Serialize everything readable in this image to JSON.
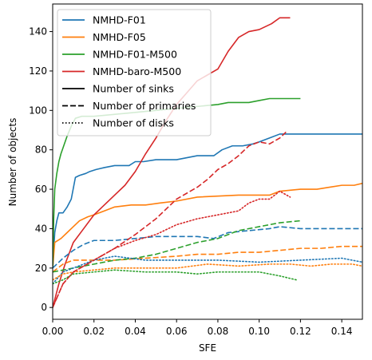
{
  "chart_data": {
    "type": "line",
    "xlabel": "SFE",
    "ylabel": "Number of objects",
    "xlim": [
      0,
      0.15
    ],
    "ylim": [
      -6,
      154
    ],
    "xticks": [
      0.0,
      0.02,
      0.04,
      0.06,
      0.08,
      0.1,
      0.12,
      0.14
    ],
    "xtick_labels": [
      "0.00",
      "0.02",
      "0.04",
      "0.06",
      "0.08",
      "0.10",
      "0.12",
      "0.14"
    ],
    "yticks": [
      0,
      20,
      40,
      60,
      80,
      100,
      120,
      140
    ],
    "ytick_labels": [
      "0",
      "20",
      "40",
      "60",
      "80",
      "100",
      "120",
      "140"
    ],
    "grid": false,
    "legend_position": "top-left",
    "legend_entries": [
      {
        "label": "NMHD-F01",
        "color": "#1f77b4",
        "style": "solid"
      },
      {
        "label": "NMHD-F05",
        "color": "#ff7f0e",
        "style": "solid"
      },
      {
        "label": "NMHD-F01-M500",
        "color": "#2ca02c",
        "style": "solid"
      },
      {
        "label": "NMHD-baro-M500",
        "color": "#d62728",
        "style": "solid"
      },
      {
        "label": "Number of sinks",
        "color": "#000000",
        "style": "solid"
      },
      {
        "label": "Number of primaries",
        "color": "#000000",
        "style": "dashed"
      },
      {
        "label": "Number of disks",
        "color": "#000000",
        "style": "dotted"
      }
    ],
    "series": [
      {
        "model": "NMHD-F01",
        "quantity": "sinks",
        "color": "#1f77b4",
        "style": "solid",
        "x": [
          0,
          0.001,
          0.002,
          0.003,
          0.005,
          0.007,
          0.009,
          0.011,
          0.013,
          0.016,
          0.018,
          0.021,
          0.025,
          0.03,
          0.037,
          0.04,
          0.044,
          0.05,
          0.06,
          0.065,
          0.07,
          0.078,
          0.082,
          0.087,
          0.092,
          0.097,
          0.1,
          0.105,
          0.11,
          0.15
        ],
        "y": [
          20,
          38,
          44,
          48,
          48,
          51,
          55,
          66,
          67,
          68,
          69,
          70,
          71,
          72,
          72,
          74,
          74,
          75,
          75,
          76,
          77,
          77,
          80,
          82,
          82,
          83,
          84,
          86,
          88,
          88
        ]
      },
      {
        "model": "NMHD-F05",
        "quantity": "sinks",
        "color": "#ff7f0e",
        "style": "solid",
        "x": [
          0,
          0.001,
          0.004,
          0.007,
          0.01,
          0.013,
          0.017,
          0.02,
          0.025,
          0.03,
          0.038,
          0.045,
          0.052,
          0.06,
          0.07,
          0.09,
          0.105,
          0.11,
          0.12,
          0.128,
          0.134,
          0.14,
          0.146,
          0.15
        ],
        "y": [
          20,
          33,
          35,
          38,
          41,
          44,
          46,
          47,
          49,
          51,
          52,
          52,
          53,
          54,
          56,
          57,
          57,
          59,
          60,
          60,
          61,
          62,
          62,
          63
        ]
      },
      {
        "model": "NMHD-F01-M500",
        "quantity": "sinks",
        "color": "#2ca02c",
        "style": "solid",
        "x": [
          0,
          0.0005,
          0.001,
          0.002,
          0.003,
          0.004,
          0.005,
          0.007,
          0.009,
          0.011,
          0.014,
          0.017,
          0.02,
          0.04,
          0.06,
          0.07,
          0.08,
          0.085,
          0.095,
          0.1,
          0.105,
          0.115,
          0.12
        ],
        "y": [
          20,
          45,
          60,
          68,
          74,
          78,
          81,
          87,
          92,
          96,
          97,
          97,
          97,
          99,
          101,
          102,
          103,
          104,
          104,
          105,
          106,
          106,
          106
        ]
      },
      {
        "model": "NMHD-baro-M500",
        "quantity": "sinks",
        "color": "#d62728",
        "style": "solid",
        "x": [
          0,
          0.003,
          0.006,
          0.01,
          0.015,
          0.02,
          0.025,
          0.03,
          0.035,
          0.04,
          0.045,
          0.05,
          0.055,
          0.06,
          0.065,
          0.07,
          0.075,
          0.08,
          0.085,
          0.09,
          0.095,
          0.1,
          0.106,
          0.11,
          0.115
        ],
        "y": [
          0,
          12,
          22,
          33,
          40,
          47,
          52,
          57,
          62,
          69,
          78,
          86,
          95,
          103,
          109,
          115,
          118,
          121,
          130,
          137,
          140,
          141,
          144,
          147,
          147
        ]
      },
      {
        "model": "NMHD-F01",
        "quantity": "primaries",
        "color": "#1f77b4",
        "style": "dashed",
        "x": [
          0,
          0.002,
          0.005,
          0.01,
          0.015,
          0.02,
          0.03,
          0.04,
          0.05,
          0.06,
          0.07,
          0.078,
          0.085,
          0.095,
          0.105,
          0.11,
          0.12,
          0.15
        ],
        "y": [
          20,
          22,
          25,
          29,
          32,
          34,
          34,
          35,
          36,
          36,
          36,
          35,
          38,
          39,
          40,
          41,
          40,
          40
        ]
      },
      {
        "model": "NMHD-F05",
        "quantity": "primaries",
        "color": "#ff7f0e",
        "style": "dashed",
        "x": [
          0,
          0.005,
          0.01,
          0.02,
          0.03,
          0.045,
          0.06,
          0.07,
          0.08,
          0.09,
          0.1,
          0.11,
          0.12,
          0.13,
          0.14,
          0.15
        ],
        "y": [
          18,
          22,
          24,
          24,
          24,
          25,
          26,
          27,
          27,
          28,
          28,
          29,
          30,
          30,
          31,
          31
        ]
      },
      {
        "model": "NMHD-F01-M500",
        "quantity": "primaries",
        "color": "#2ca02c",
        "style": "dashed",
        "x": [
          0,
          0.005,
          0.01,
          0.02,
          0.03,
          0.04,
          0.05,
          0.06,
          0.07,
          0.08,
          0.09,
          0.1,
          0.11,
          0.12
        ],
        "y": [
          18,
          19,
          20,
          22,
          24,
          25,
          27,
          30,
          33,
          35,
          39,
          41,
          43,
          44
        ]
      },
      {
        "model": "NMHD-baro-M500",
        "quantity": "primaries",
        "color": "#d62728",
        "style": "dashed",
        "x": [
          0,
          0.005,
          0.01,
          0.02,
          0.03,
          0.04,
          0.05,
          0.06,
          0.065,
          0.07,
          0.075,
          0.08,
          0.085,
          0.09,
          0.095,
          0.1,
          0.105,
          0.11,
          0.113
        ],
        "y": [
          0,
          12,
          18,
          24,
          30,
          37,
          45,
          55,
          58,
          61,
          65,
          70,
          73,
          77,
          82,
          84,
          83,
          86,
          89
        ]
      },
      {
        "model": "NMHD-F01",
        "quantity": "disks",
        "color": "#1f77b4",
        "style": "dotted",
        "x": [
          0,
          0.005,
          0.01,
          0.02,
          0.03,
          0.045,
          0.06,
          0.08,
          0.1,
          0.12,
          0.14,
          0.15
        ],
        "y": [
          12,
          18,
          20,
          24,
          26,
          24,
          24,
          24,
          23,
          24,
          25,
          23
        ]
      },
      {
        "model": "NMHD-F05",
        "quantity": "disks",
        "color": "#ff7f0e",
        "style": "dotted",
        "x": [
          0,
          0.005,
          0.01,
          0.02,
          0.03,
          0.045,
          0.06,
          0.075,
          0.09,
          0.105,
          0.115,
          0.125,
          0.135,
          0.145,
          0.15
        ],
        "y": [
          14,
          17,
          18,
          19,
          20,
          20,
          20,
          22,
          21,
          22,
          22,
          21,
          22,
          22,
          21
        ]
      },
      {
        "model": "NMHD-F01-M500",
        "quantity": "disks",
        "color": "#2ca02c",
        "style": "dotted",
        "x": [
          0,
          0.005,
          0.01,
          0.02,
          0.03,
          0.045,
          0.06,
          0.07,
          0.08,
          0.09,
          0.1,
          0.11,
          0.118
        ],
        "y": [
          12,
          14,
          17,
          18,
          19,
          18,
          18,
          17,
          18,
          18,
          18,
          16,
          14
        ]
      },
      {
        "model": "NMHD-baro-M500",
        "quantity": "disks",
        "color": "#d62728",
        "style": "dotted",
        "x": [
          0,
          0.005,
          0.01,
          0.02,
          0.03,
          0.04,
          0.05,
          0.06,
          0.07,
          0.08,
          0.09,
          0.095,
          0.1,
          0.105,
          0.11,
          0.115
        ],
        "y": [
          0,
          12,
          18,
          24,
          30,
          34,
          37,
          42,
          45,
          47,
          49,
          53,
          55,
          55,
          59,
          56
        ]
      }
    ]
  }
}
